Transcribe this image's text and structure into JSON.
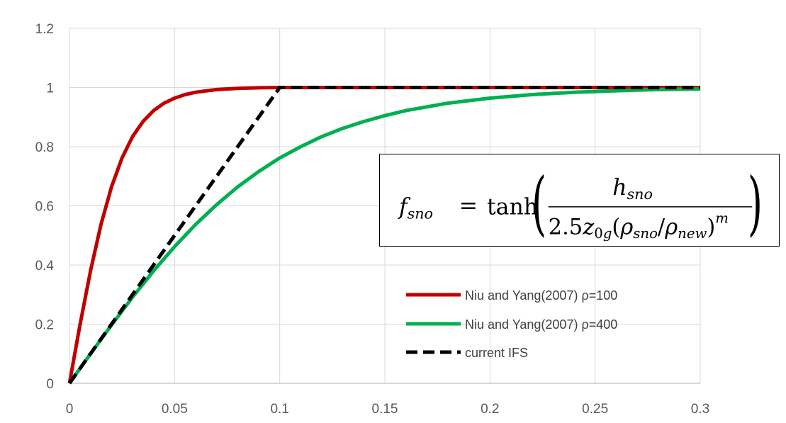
{
  "chart_data": {
    "type": "line",
    "xlim": [
      0,
      0.3
    ],
    "ylim": [
      0,
      1.2
    ],
    "x_ticks": [
      "0",
      "0.05",
      "0.1",
      "0.15",
      "0.2",
      "0.25",
      "0.3"
    ],
    "y_ticks": [
      "0",
      "0.2",
      "0.4",
      "0.6",
      "0.8",
      "1",
      "1.2"
    ],
    "grid": true,
    "legend_position": "bottom-right",
    "series": [
      {
        "name": "Niu and Yang(2007) ρ=100",
        "color": "#c00000",
        "style": "solid",
        "x": [
          0,
          0.005,
          0.01,
          0.015,
          0.02,
          0.025,
          0.03,
          0.035,
          0.04,
          0.045,
          0.05,
          0.055,
          0.06,
          0.07,
          0.08,
          0.09,
          0.1,
          0.15,
          0.2,
          0.25,
          0.3
        ],
        "y": [
          0,
          0.197,
          0.38,
          0.537,
          0.664,
          0.762,
          0.834,
          0.885,
          0.922,
          0.947,
          0.964,
          0.976,
          0.984,
          0.993,
          0.997,
          0.999,
          1.0,
          1.0,
          1.0,
          1.0,
          1.0
        ]
      },
      {
        "name": "Niu and Yang(2007) ρ=400",
        "color": "#00b050",
        "style": "solid",
        "x": [
          0,
          0.01,
          0.02,
          0.03,
          0.04,
          0.05,
          0.06,
          0.07,
          0.08,
          0.09,
          0.1,
          0.11,
          0.12,
          0.13,
          0.14,
          0.15,
          0.16,
          0.18,
          0.2,
          0.22,
          0.24,
          0.26,
          0.28,
          0.3
        ],
        "y": [
          0,
          0.1,
          0.197,
          0.291,
          0.38,
          0.462,
          0.537,
          0.604,
          0.664,
          0.716,
          0.762,
          0.8,
          0.834,
          0.862,
          0.885,
          0.905,
          0.922,
          0.947,
          0.964,
          0.976,
          0.984,
          0.989,
          0.993,
          0.995
        ]
      },
      {
        "name": "current IFS",
        "color": "#000000",
        "style": "dashed",
        "x": [
          0,
          0.1,
          0.3
        ],
        "y": [
          0,
          1.0,
          1.0
        ]
      }
    ]
  }
}
